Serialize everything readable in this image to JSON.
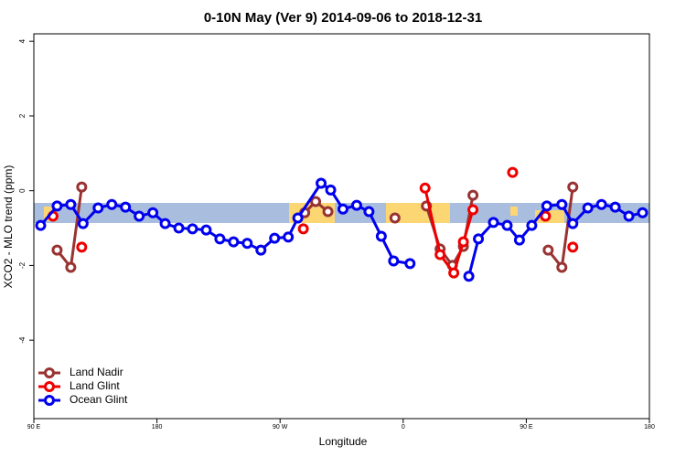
{
  "chart_data": {
    "type": "line",
    "title": "0-10N May (Ver 9)   2014-09-06 to 2018-12-31",
    "x_label": "Longitude",
    "y_label": "XCO2 - MLO trend (ppm)",
    "xlim": [
      90,
      540
    ],
    "ylim": [
      -6.1,
      4.2
    ],
    "xticks": [
      {
        "value": 90,
        "label": "90 E"
      },
      180,
      {
        "value": 270,
        "label": "90 W"
      },
      {
        "value": 360,
        "label": "0"
      },
      {
        "value": 450,
        "label": "90 E"
      },
      {
        "value": 540,
        "label": "180"
      }
    ],
    "yticks": [
      4,
      2,
      0,
      -2,
      -4
    ],
    "legend": "bottom-left",
    "series": [
      {
        "name": "Land Nadir",
        "color": "#993333",
        "x": [
          107,
          117,
          125,
          null,
          288,
          296,
          305,
          null,
          354,
          null,
          377,
          387,
          396,
          404,
          411,
          null,
          466,
          476,
          484
        ],
        "values": [
          -1.59,
          -2.05,
          0.1,
          null,
          -0.59,
          -0.29,
          -0.56,
          null,
          -0.73,
          null,
          -0.41,
          -1.56,
          -2.0,
          -1.49,
          -0.12,
          null,
          -1.59,
          -2.05,
          0.1
        ]
      },
      {
        "name": "Land Glint",
        "color": "#ee0000",
        "x": [
          104,
          null,
          125,
          null,
          287,
          null,
          376,
          387,
          397,
          404,
          411,
          null,
          440,
          null,
          464,
          null,
          484
        ],
        "values": [
          -0.68,
          null,
          -1.51,
          null,
          -1.02,
          null,
          0.07,
          -1.71,
          -2.2,
          -1.37,
          -0.51,
          null,
          0.49,
          null,
          -0.68,
          null,
          -1.51
        ]
      },
      {
        "name": "Ocean Glint",
        "color": "#0000ee",
        "x": [
          95,
          107,
          117,
          126,
          137,
          147,
          157,
          167,
          177,
          186,
          196,
          206,
          216,
          226,
          236,
          246,
          256,
          266,
          276,
          283,
          300,
          307,
          316,
          326,
          335,
          344,
          353,
          365,
          null,
          408,
          415,
          426,
          436,
          445,
          454,
          465,
          476,
          484,
          495,
          505,
          515,
          525,
          535
        ],
        "values": [
          -0.93,
          -0.41,
          -0.37,
          -0.88,
          -0.46,
          -0.37,
          -0.44,
          -0.68,
          -0.59,
          -0.88,
          -1.0,
          -1.02,
          -1.05,
          -1.29,
          -1.37,
          -1.41,
          -1.59,
          -1.27,
          -1.24,
          -0.73,
          0.2,
          0.02,
          -0.49,
          -0.39,
          -0.56,
          -1.22,
          -1.88,
          -1.95,
          null,
          -2.29,
          -1.29,
          -0.85,
          -0.93,
          -1.32,
          -0.93,
          -0.41,
          -0.37,
          -0.88,
          -0.46,
          -0.37,
          -0.44,
          -0.68,
          -0.59
        ]
      }
    ]
  }
}
